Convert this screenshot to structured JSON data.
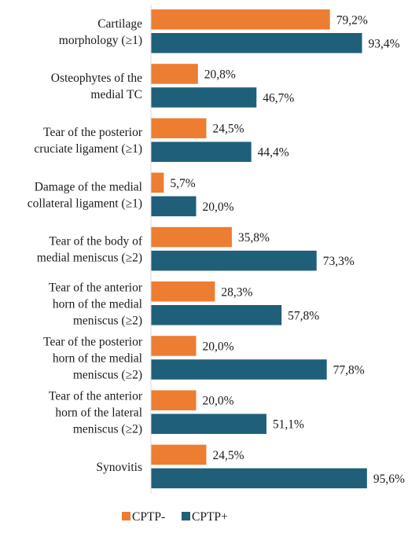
{
  "chart_data": {
    "type": "bar",
    "orientation": "horizontal",
    "categories": [
      [
        "Cartilage",
        "morphology (≥1)"
      ],
      [
        "Osteophytes of the",
        "medial TC"
      ],
      [
        "Tear of the posterior",
        "cruciate ligament (≥1)"
      ],
      [
        "Damage of the medial",
        "collateral ligament (≥1)"
      ],
      [
        "Tear of the body of",
        "medial meniscus (≥2)"
      ],
      [
        "Tear of the anterior",
        "horn of the medial",
        "meniscus (≥2)"
      ],
      [
        "Tear of the posterior",
        "horn of the medial",
        "meniscus (≥2)"
      ],
      [
        "Tear of the anterior",
        "horn of the lateral",
        "meniscus (≥2)"
      ],
      [
        "Synovitis"
      ]
    ],
    "series": [
      {
        "name": "CPTP-",
        "color": "#ED7D31",
        "values": [
          79.2,
          20.8,
          24.5,
          5.7,
          35.8,
          28.3,
          20.0,
          20.0,
          24.5
        ],
        "labels": [
          "79,2%",
          "20,8%",
          "24,5%",
          "5,7%",
          "35,8%",
          "28,3%",
          "20,0%",
          "20,0%",
          "24,5%"
        ]
      },
      {
        "name": "CPTP+",
        "color": "#1F5F7A",
        "values": [
          93.4,
          46.7,
          44.4,
          20.0,
          73.3,
          57.8,
          77.8,
          51.1,
          95.6
        ],
        "labels": [
          "93,4%",
          "46,7%",
          "44,4%",
          "20,0%",
          "73,3%",
          "57,8%",
          "77,8%",
          "51,1%",
          "95,6%"
        ]
      }
    ],
    "xlim": [
      0,
      100
    ],
    "axis_color": "#d9d9d9",
    "grid": false,
    "legend_position": "bottom"
  }
}
